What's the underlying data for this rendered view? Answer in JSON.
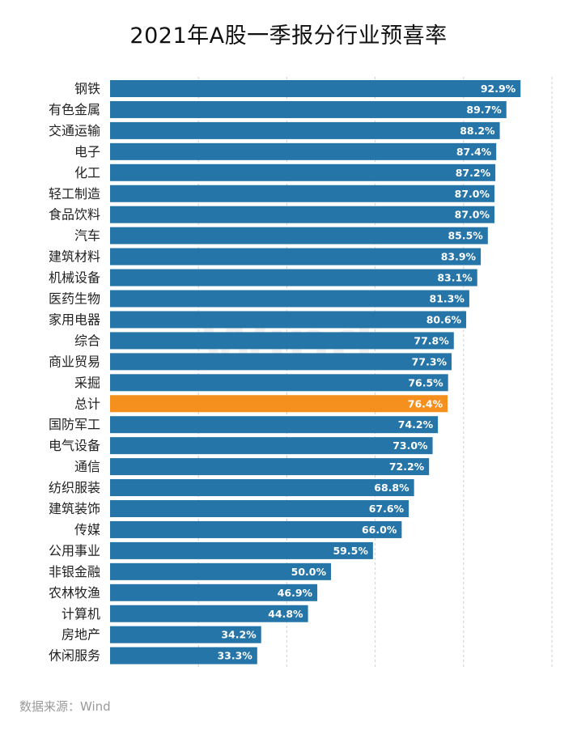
{
  "source": "数据来源：Wind",
  "watermark": "Wind",
  "colors": {
    "bar": "#2675a8",
    "highlight": "#f5901f",
    "grid": "#cfcfcf"
  },
  "chart_data": {
    "type": "bar",
    "orientation": "horizontal",
    "title": "2021年A股一季报分行业预喜率",
    "xlabel": "",
    "ylabel": "",
    "xlim": [
      0,
      100
    ],
    "grid": true,
    "highlight_category": "总计",
    "categories": [
      "钢铁",
      "有色金属",
      "交通运输",
      "电子",
      "化工",
      "轻工制造",
      "食品饮料",
      "汽车",
      "建筑材料",
      "机械设备",
      "医药生物",
      "家用电器",
      "综合",
      "商业贸易",
      "采掘",
      "总计",
      "国防军工",
      "电气设备",
      "通信",
      "纺织服装",
      "建筑装饰",
      "传媒",
      "公用事业",
      "非银金融",
      "农林牧渔",
      "计算机",
      "房地产",
      "休闲服务"
    ],
    "values": [
      92.9,
      89.7,
      88.2,
      87.4,
      87.2,
      87.0,
      87.0,
      85.5,
      83.9,
      83.1,
      81.3,
      80.6,
      77.8,
      77.3,
      76.5,
      76.4,
      74.2,
      73.0,
      72.2,
      68.8,
      67.6,
      66.0,
      59.5,
      50.0,
      46.9,
      44.8,
      34.2,
      33.3
    ],
    "value_labels": [
      "92.9%",
      "89.7%",
      "88.2%",
      "87.4%",
      "87.2%",
      "87.0%",
      "87.0%",
      "85.5%",
      "83.9%",
      "83.1%",
      "81.3%",
      "80.6%",
      "77.8%",
      "77.3%",
      "76.5%",
      "76.4%",
      "74.2%",
      "73.0%",
      "72.2%",
      "68.8%",
      "67.6%",
      "66.0%",
      "59.5%",
      "50.0%",
      "46.9%",
      "44.8%",
      "34.2%",
      "33.3%"
    ]
  }
}
